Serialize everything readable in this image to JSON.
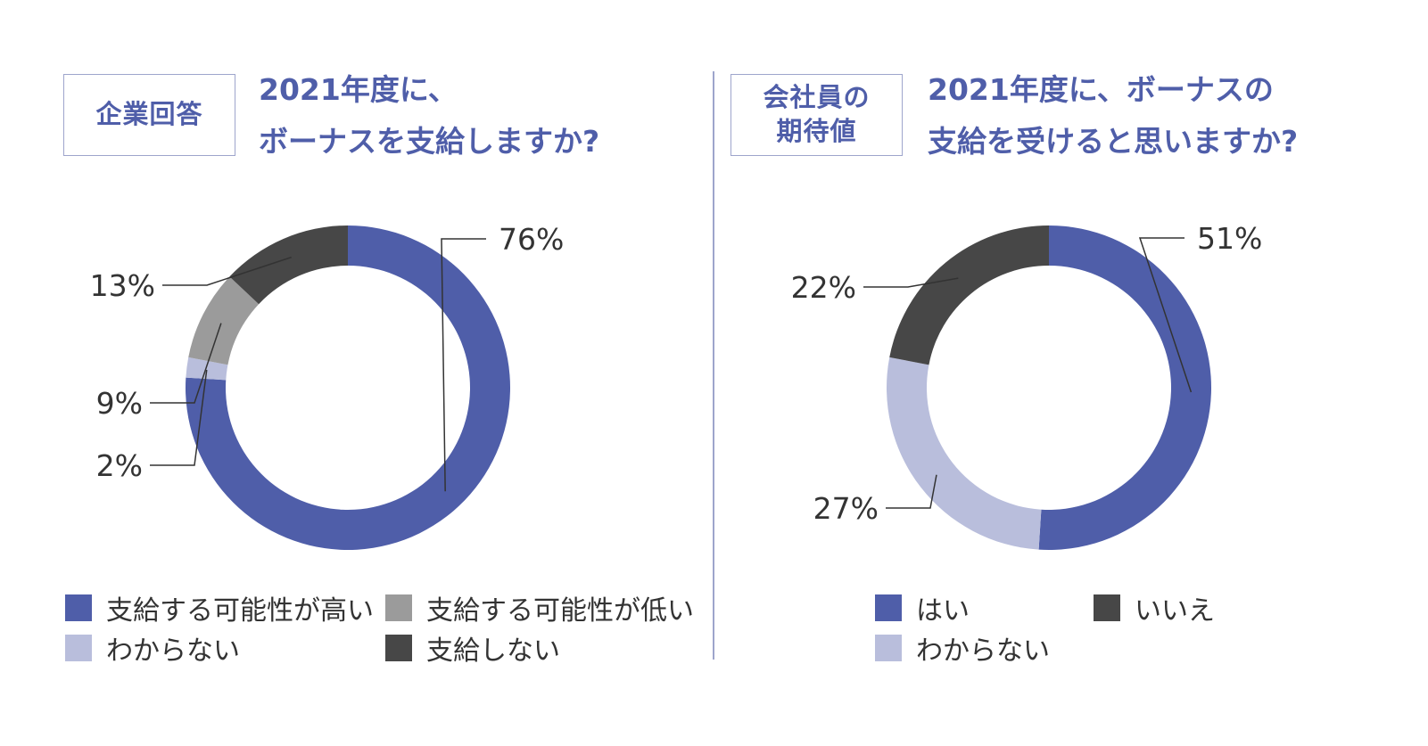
{
  "colors": {
    "accent": "#4f5ea9",
    "light_lavender": "#b9bedc",
    "gray": "#9b9b9b",
    "dark_gray": "#474747",
    "border": "#9ea5cc"
  },
  "left": {
    "tag_lines": [
      "企業回答"
    ],
    "title_lines": [
      "2021年度に、",
      "ボーナスを支給しますか?"
    ]
  },
  "right": {
    "tag_lines": [
      "会社員の",
      "期待値"
    ],
    "title_lines": [
      "2021年度に、ボーナスの",
      "支給を受けると思いますか?"
    ]
  },
  "chart_data": [
    {
      "type": "pie",
      "donut": true,
      "slices": [
        {
          "label": "支給する可能性が高い",
          "value": 76,
          "value_label": "76%",
          "color": "#4f5ea9"
        },
        {
          "label": "わからない",
          "value": 2,
          "value_label": "2%",
          "color": "#b9bedc"
        },
        {
          "label": "支給する可能性が低い",
          "value": 9,
          "value_label": "9%",
          "color": "#9b9b9b"
        },
        {
          "label": "支給しない",
          "value": 13,
          "value_label": "13%",
          "color": "#474747"
        }
      ],
      "legend": [
        "支給する可能性が高い",
        "支給する可能性が低い",
        "わからない",
        "支給しない"
      ],
      "legend_position": "bottom"
    },
    {
      "type": "pie",
      "donut": true,
      "slices": [
        {
          "label": "はい",
          "value": 51,
          "value_label": "51%",
          "color": "#4f5ea9"
        },
        {
          "label": "わからない",
          "value": 27,
          "value_label": "27%",
          "color": "#b9bedc"
        },
        {
          "label": "いいえ",
          "value": 22,
          "value_label": "22%",
          "color": "#474747"
        }
      ],
      "legend": [
        "はい",
        "いいえ",
        "わからない"
      ],
      "legend_position": "bottom"
    }
  ]
}
